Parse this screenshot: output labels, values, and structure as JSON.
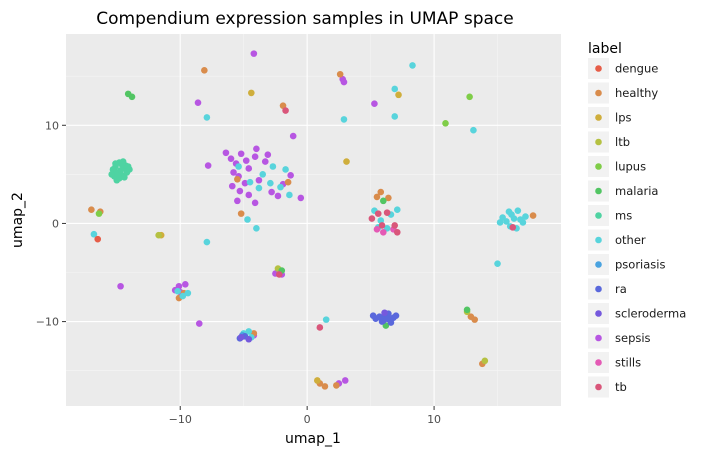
{
  "chart_data": {
    "type": "scatter",
    "title": "Compendium expression samples in UMAP space",
    "xlabel": "umap_1",
    "ylabel": "umap_2",
    "xlim": [
      -19.0,
      20.0
    ],
    "ylim": [
      -18.6,
      19.3
    ],
    "x_ticks": [
      -10,
      0,
      10
    ],
    "y_ticks": [
      -10,
      0,
      10
    ],
    "grid": true,
    "legend_title": "label",
    "legend_position": "right",
    "series": [
      {
        "name": "dengue",
        "color": "#e65d48",
        "points": [
          [
            -16.5,
            -1.6
          ]
        ]
      },
      {
        "name": "healthy",
        "color": "#d98c4c",
        "points": [
          [
            -8.1,
            15.6
          ],
          [
            -1.9,
            12.0
          ],
          [
            2.6,
            15.2
          ],
          [
            -17.0,
            1.4
          ],
          [
            -16.3,
            1.2
          ],
          [
            -5.2,
            1.0
          ],
          [
            -5.5,
            4.5
          ],
          [
            -1.5,
            4.2
          ],
          [
            5.8,
            3.2
          ],
          [
            6.4,
            2.6
          ],
          [
            5.5,
            2.7
          ],
          [
            -10.1,
            -7.6
          ],
          [
            -9.7,
            -7.1
          ],
          [
            -4.2,
            -11.2
          ],
          [
            1.0,
            -16.3
          ],
          [
            1.4,
            -16.6
          ],
          [
            2.3,
            -16.5
          ],
          [
            12.9,
            -9.5
          ],
          [
            13.2,
            -9.8
          ],
          [
            13.8,
            -14.3
          ],
          [
            17.8,
            0.8
          ]
        ]
      },
      {
        "name": "lps",
        "color": "#cfae3c",
        "points": [
          [
            -4.4,
            13.3
          ],
          [
            3.1,
            6.3
          ],
          [
            7.2,
            13.1
          ],
          [
            -11.5,
            -1.2
          ],
          [
            0.8,
            -16.0
          ]
        ]
      },
      {
        "name": "ltb",
        "color": "#b5c142",
        "points": [
          [
            -11.7,
            -1.2
          ],
          [
            14.0,
            -14.0
          ],
          [
            12.6,
            -9.0
          ],
          [
            -2.3,
            -4.6
          ]
        ]
      },
      {
        "name": "lupus",
        "color": "#7fcd48",
        "points": [
          [
            10.9,
            10.2
          ],
          [
            12.8,
            12.9
          ],
          [
            -16.4,
            1.0
          ]
        ]
      },
      {
        "name": "malaria",
        "color": "#52c563",
        "points": [
          [
            -14.1,
            13.2
          ],
          [
            -13.8,
            12.9
          ],
          [
            -2.0,
            -4.8
          ],
          [
            6.0,
            2.3
          ],
          [
            6.2,
            -10.4
          ],
          [
            12.6,
            -8.8
          ]
        ]
      },
      {
        "name": "ms",
        "color": "#4fd3a2",
        "points": [
          [
            -14.8,
            6.2
          ],
          [
            -15.1,
            5.8
          ],
          [
            -14.4,
            5.6
          ],
          [
            -15.0,
            5.2
          ],
          [
            -14.6,
            4.9
          ],
          [
            -15.0,
            4.4
          ],
          [
            -14.3,
            5.9
          ],
          [
            -15.3,
            5.5
          ],
          [
            -14.8,
            4.6
          ],
          [
            -14.5,
            6.3
          ],
          [
            -15.2,
            4.8
          ],
          [
            -14.2,
            5.2
          ],
          [
            -14.9,
            5.0
          ],
          [
            -14.1,
            5.8
          ],
          [
            -15.4,
            5.0
          ],
          [
            -14.7,
            5.4
          ],
          [
            -15.1,
            6.1
          ],
          [
            -14.4,
            4.7
          ],
          [
            -14.0,
            5.5
          ],
          [
            -14.6,
            6.0
          ]
        ]
      },
      {
        "name": "other",
        "color": "#58d4dc",
        "points": [
          [
            -7.9,
            10.8
          ],
          [
            2.9,
            10.6
          ],
          [
            6.9,
            10.9
          ],
          [
            6.9,
            13.7
          ],
          [
            8.3,
            16.1
          ],
          [
            13.1,
            9.5
          ],
          [
            -16.8,
            -1.1
          ],
          [
            -7.9,
            -1.9
          ],
          [
            -4.0,
            -0.5
          ],
          [
            -4.7,
            0.4
          ],
          [
            -5.4,
            5.8
          ],
          [
            -4.5,
            4.2
          ],
          [
            -3.5,
            5.0
          ],
          [
            -2.9,
            4.1
          ],
          [
            -2.1,
            3.7
          ],
          [
            -1.7,
            5.5
          ],
          [
            -1.4,
            2.9
          ],
          [
            -2.7,
            5.8
          ],
          [
            -3.8,
            3.6
          ],
          [
            5.3,
            1.3
          ],
          [
            5.8,
            0.3
          ],
          [
            6.6,
            0.9
          ],
          [
            7.1,
            1.4
          ],
          [
            6.3,
            -0.5
          ],
          [
            5.6,
            -0.4
          ],
          [
            15.7,
            0.2
          ],
          [
            16.1,
            0.9
          ],
          [
            16.8,
            0.4
          ],
          [
            16.0,
            -0.3
          ],
          [
            16.6,
            1.3
          ],
          [
            15.4,
            0.6
          ],
          [
            17.2,
            0.7
          ],
          [
            16.3,
            0.5
          ],
          [
            15.9,
            1.2
          ],
          [
            17.0,
            0.1
          ],
          [
            15.2,
            0.1
          ],
          [
            16.5,
            -0.5
          ],
          [
            -10.2,
            -6.9
          ],
          [
            -9.4,
            -7.1
          ],
          [
            -9.8,
            -7.4
          ],
          [
            -5.0,
            -11.2
          ],
          [
            -4.4,
            -11.6
          ],
          [
            -4.6,
            -11.0
          ],
          [
            1.5,
            -9.8
          ],
          [
            15.0,
            -4.1
          ]
        ]
      },
      {
        "name": "psoriasis",
        "color": "#4aa3e0",
        "points": [
          [
            -5.1,
            -11.4
          ]
        ]
      },
      {
        "name": "ra",
        "color": "#5a68dc",
        "points": [
          [
            5.7,
            -9.5
          ],
          [
            6.2,
            -9.3
          ],
          [
            6.5,
            -9.8
          ],
          [
            5.9,
            -10.0
          ],
          [
            6.8,
            -9.6
          ],
          [
            5.4,
            -9.7
          ],
          [
            6.4,
            -9.2
          ],
          [
            6.0,
            -9.9
          ],
          [
            7.0,
            -9.4
          ],
          [
            5.2,
            -9.4
          ],
          [
            6.6,
            -10.1
          ],
          [
            5.8,
            -9.6
          ],
          [
            6.3,
            -9.7
          ],
          [
            -5.3,
            -11.7
          ],
          [
            -4.9,
            -11.5
          ]
        ]
      },
      {
        "name": "scleroderma",
        "color": "#7559dd",
        "points": [
          [
            -4.6,
            -11.8
          ],
          [
            -5.2,
            -11.6
          ],
          [
            6.1,
            -9.1
          ]
        ]
      },
      {
        "name": "sepsis",
        "color": "#b756e2",
        "points": [
          [
            -4.2,
            17.3
          ],
          [
            -8.6,
            12.3
          ],
          [
            5.3,
            12.2
          ],
          [
            -1.1,
            8.9
          ],
          [
            -6.4,
            7.2
          ],
          [
            -6.0,
            6.6
          ],
          [
            -5.6,
            6.1
          ],
          [
            -5.2,
            7.1
          ],
          [
            -4.8,
            6.4
          ],
          [
            -4.6,
            5.6
          ],
          [
            -4.1,
            6.8
          ],
          [
            -5.8,
            5.2
          ],
          [
            -5.4,
            4.8
          ],
          [
            -4.9,
            4.1
          ],
          [
            -5.9,
            3.8
          ],
          [
            -5.3,
            3.3
          ],
          [
            -4.6,
            2.9
          ],
          [
            -3.8,
            4.4
          ],
          [
            -3.3,
            6.3
          ],
          [
            -2.8,
            3.2
          ],
          [
            -2.3,
            2.8
          ],
          [
            -1.9,
            4.0
          ],
          [
            -1.3,
            4.9
          ],
          [
            -3.1,
            7.0
          ],
          [
            -4.0,
            7.6
          ],
          [
            -5.5,
            2.3
          ],
          [
            -4.1,
            2.1
          ],
          [
            -7.8,
            5.9
          ],
          [
            -0.5,
            2.6
          ],
          [
            -10.1,
            -6.4
          ],
          [
            -9.6,
            -6.2
          ],
          [
            -10.4,
            -6.8
          ],
          [
            -8.5,
            -10.2
          ],
          [
            -14.7,
            -6.4
          ],
          [
            -10.0,
            -7.0
          ],
          [
            3.0,
            -16.0
          ],
          [
            2.5,
            -16.3
          ],
          [
            2.8,
            14.7
          ],
          [
            2.9,
            14.4
          ],
          [
            -2.5,
            -5.1
          ],
          [
            -2.0,
            -5.2
          ],
          [
            -5.1,
            -11.4
          ],
          [
            -4.2,
            -11.4
          ]
        ]
      },
      {
        "name": "stills",
        "color": "#e45ab5",
        "points": [
          [
            5.5,
            -0.6
          ],
          [
            6.0,
            -0.9
          ],
          [
            6.8,
            -0.6
          ]
        ]
      },
      {
        "name": "tb",
        "color": "#d9567a",
        "points": [
          [
            1.0,
            -10.6
          ],
          [
            5.1,
            0.5
          ],
          [
            5.6,
            1.0
          ],
          [
            6.3,
            1.1
          ],
          [
            6.9,
            -0.2
          ],
          [
            7.1,
            -0.9
          ],
          [
            5.9,
            -0.2
          ],
          [
            16.2,
            -0.4
          ],
          [
            -1.7,
            11.5
          ],
          [
            -2.2,
            -5.2
          ]
        ]
      }
    ]
  }
}
